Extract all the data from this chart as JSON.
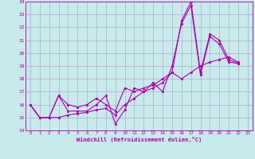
{
  "xlabel": "Windchill (Refroidissement éolien,°C)",
  "background_color": "#c8eaea",
  "grid_color": "#aaaacc",
  "line_color": "#aa00aa",
  "xlim": [
    -0.5,
    23.5
  ],
  "ylim": [
    14,
    24
  ],
  "xticks": [
    0,
    1,
    2,
    3,
    4,
    5,
    6,
    7,
    8,
    9,
    10,
    11,
    12,
    13,
    14,
    15,
    16,
    17,
    18,
    19,
    20,
    21,
    22,
    23
  ],
  "yticks": [
    14,
    15,
    16,
    17,
    18,
    19,
    20,
    21,
    22,
    23,
    24
  ],
  "series": [
    [
      16.0,
      15.0,
      15.0,
      16.7,
      15.5,
      15.5,
      15.5,
      16.0,
      16.7,
      14.5,
      15.6,
      17.3,
      17.0,
      17.7,
      17.0,
      19.0,
      22.3,
      23.7,
      18.3,
      21.3,
      20.7,
      19.3,
      19.2
    ],
    [
      16.0,
      15.0,
      15.0,
      15.0,
      15.2,
      15.3,
      15.4,
      15.6,
      15.7,
      15.2,
      16.0,
      16.5,
      17.0,
      17.3,
      17.7,
      18.5,
      18.0,
      18.5,
      19.0,
      19.3,
      19.5,
      19.7,
      19.3
    ],
    [
      16.0,
      15.0,
      15.0,
      16.7,
      16.0,
      15.8,
      16.0,
      16.5,
      16.0,
      15.5,
      17.3,
      17.0,
      17.3,
      17.5,
      18.0,
      18.5,
      22.5,
      24.0,
      18.5,
      21.5,
      21.0,
      19.5,
      19.2
    ]
  ]
}
